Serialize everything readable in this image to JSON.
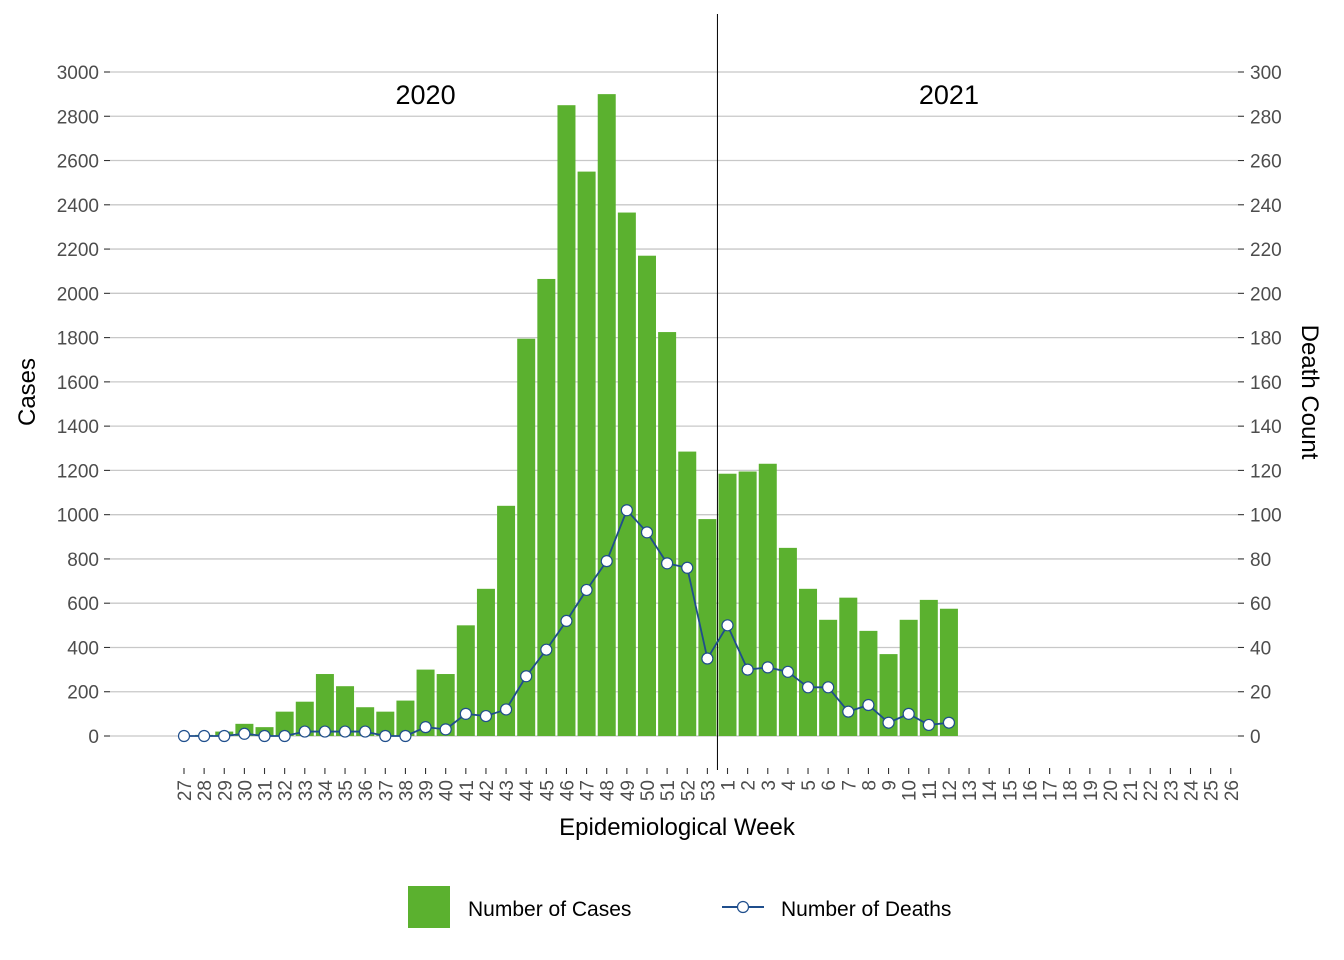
{
  "chart_data": {
    "type": "bar",
    "xlabel": "Epidemiological Week",
    "ylabel": "Cases",
    "y2label": "Death Count",
    "ylim": [
      0,
      3000
    ],
    "y2lim": [
      0,
      300
    ],
    "yticks": [
      0,
      200,
      400,
      600,
      800,
      1000,
      1200,
      1400,
      1600,
      1800,
      2000,
      2200,
      2400,
      2600,
      2800,
      3000
    ],
    "y2ticks": [
      0,
      20,
      40,
      60,
      80,
      100,
      120,
      140,
      160,
      180,
      200,
      220,
      240,
      260,
      280,
      300
    ],
    "grid": true,
    "legend_position": "bottom",
    "categories": [
      "27",
      "28",
      "29",
      "30",
      "31",
      "32",
      "33",
      "34",
      "35",
      "36",
      "37",
      "38",
      "39",
      "40",
      "41",
      "42",
      "43",
      "44",
      "45",
      "46",
      "47",
      "48",
      "49",
      "50",
      "51",
      "52",
      "53",
      "1",
      "2",
      "3",
      "4",
      "5",
      "6",
      "7",
      "8",
      "9",
      "10",
      "11",
      "12",
      "13",
      "14",
      "15",
      "16",
      "17",
      "18",
      "19",
      "20",
      "21",
      "22",
      "23",
      "24",
      "25",
      "26"
    ],
    "year_labels": [
      {
        "text": "2020",
        "at_category_index": 12
      },
      {
        "text": "2021",
        "at_category_index": 38
      }
    ],
    "year_divider_between": [
      "53",
      "1"
    ],
    "series": [
      {
        "name": "Number of Cases",
        "type": "bar",
        "axis": "left",
        "color": "#5bb12f",
        "values": [
          0,
          5,
          20,
          55,
          40,
          110,
          155,
          280,
          225,
          130,
          110,
          160,
          300,
          280,
          500,
          665,
          1040,
          1795,
          2065,
          2850,
          2550,
          2900,
          2365,
          2170,
          1825,
          1285,
          980,
          1185,
          1195,
          1230,
          850,
          665,
          525,
          625,
          475,
          370,
          525,
          615,
          575,
          null,
          null,
          null,
          null,
          null,
          null,
          null,
          null,
          null,
          null,
          null,
          null,
          null,
          null
        ]
      },
      {
        "name": "Number of Deaths",
        "type": "line",
        "axis": "right",
        "color": "#1f4e8c",
        "marker_fill": "#ffffff",
        "values": [
          0,
          0,
          0,
          1,
          0,
          0,
          2,
          2,
          2,
          2,
          0,
          0,
          4,
          3,
          10,
          9,
          12,
          27,
          39,
          52,
          66,
          79,
          102,
          92,
          78,
          76,
          35,
          50,
          30,
          31,
          29,
          22,
          22,
          11,
          14,
          6,
          10,
          5,
          6,
          null,
          null,
          null,
          null,
          null,
          null,
          null,
          null,
          null,
          null,
          null,
          null,
          null,
          null
        ]
      }
    ]
  }
}
